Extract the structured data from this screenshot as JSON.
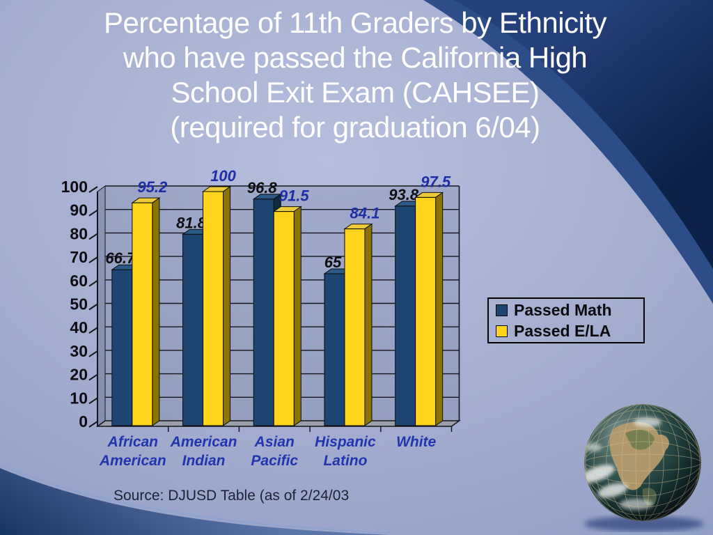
{
  "slide": {
    "title_lines": [
      "Percentage of 11th Graders by Ethnicity",
      "who have passed the California High",
      "School Exit Exam (CAHSEE)",
      "(required for graduation 6/04)"
    ],
    "source_text": "Source:  DJUSD Table (as of 2/24/03",
    "background_colors": {
      "light_area": "#a9b2d4",
      "medium_blue": "#5a75a8",
      "navy": "#122a56"
    }
  },
  "chart_data": {
    "type": "bar",
    "title": "",
    "categories": [
      "African American",
      "American Indian",
      "Asian Pacific",
      "Hispanic Latino",
      "White"
    ],
    "category_lines": [
      [
        "African",
        "American"
      ],
      [
        "American",
        "Indian"
      ],
      [
        "Asian",
        "Pacific"
      ],
      [
        "Hispanic",
        "Latino"
      ],
      [
        "White"
      ]
    ],
    "series": [
      {
        "name": "Passed Math",
        "values": [
          66.7,
          81.8,
          96.8,
          65,
          93.8
        ],
        "color": "#1D4571",
        "top_color": "#2B5A86",
        "side_color": "#102A42",
        "label_color": "#0D0D12"
      },
      {
        "name": "Passed E/LA",
        "values": [
          95.2,
          100,
          91.5,
          84.1,
          97.5
        ],
        "color": "#FFD41C",
        "top_color": "#EECB3A",
        "side_color": "#8C7400",
        "label_color": "#1E2FA6"
      }
    ],
    "ylim": [
      0,
      100
    ],
    "ytick_step": 10,
    "yticks": [
      0,
      10,
      20,
      30,
      40,
      50,
      60,
      70,
      80,
      90,
      100
    ],
    "grid": true,
    "legend_position": "right",
    "axis_label_color": "#0C0C12",
    "category_label_color": "#2135AE",
    "ylabel": "",
    "xlabel": ""
  }
}
